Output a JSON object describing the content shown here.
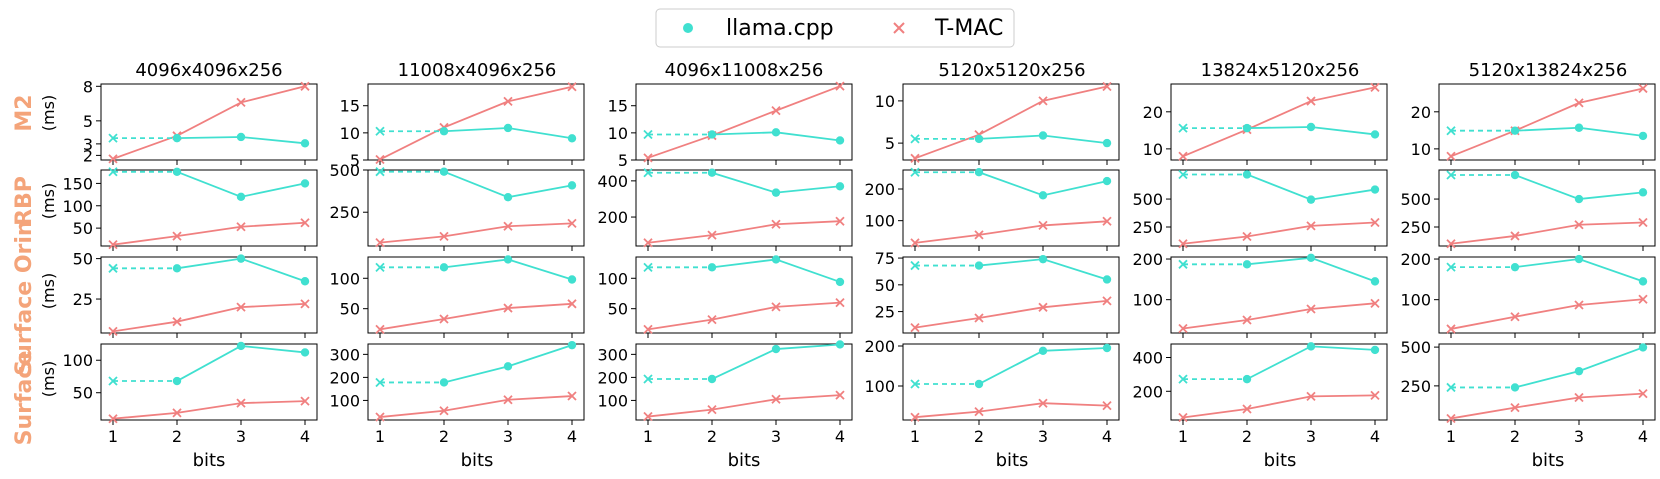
{
  "legend": [
    {
      "label": "llama.cpp",
      "marker": "circle",
      "color": "#40e0d0"
    },
    {
      "label": "T-MAC",
      "marker": "x",
      "color": "#f08080"
    }
  ],
  "colors": {
    "llama": "#40e0d0",
    "tmac": "#f08080",
    "row_label": "#f4a47a"
  },
  "rows": [
    {
      "label": "M2",
      "unit": "(ms)"
    },
    {
      "label": "RBP",
      "unit": "(ms)"
    },
    {
      "label": "Surface Orin",
      "unit": "(ms)"
    },
    {
      "label": "Surface",
      "unit": "(ms)"
    }
  ],
  "columns": [
    "4096x4096x256",
    "11008x4096x256",
    "4096x11008x256",
    "5120x5120x256",
    "13824x5120x256",
    "5120x13824x256"
  ],
  "x_axis_label": "bits",
  "chart_data": {
    "type": "line",
    "layout": "grid 4 rows x 6 columns",
    "x": [
      1,
      2,
      3,
      4
    ],
    "xlabel": "bits",
    "ylabel": "(ms)",
    "series_names": [
      "llama.cpp",
      "T-MAC"
    ],
    "note_style": "llama.cpp segment from bit 1 to 2 is dashed (1-bit uses same kernel as 2-bit, shown with x marker)",
    "panels": [
      [
        {
          "title": "4096x4096x256",
          "ylim": [
            1.6,
            8.2
          ],
          "yticks": [
            2,
            3,
            5,
            8
          ],
          "ytick_labels": [
            "2",
            "3",
            "5",
            "8"
          ],
          "llama": [
            3.5,
            3.5,
            3.6,
            3.05
          ],
          "tmac": [
            1.7,
            3.7,
            6.6,
            8.0
          ]
        },
        {
          "title": "11008x4096x256",
          "ylim": [
            5,
            19
          ],
          "yticks": [
            5,
            10,
            15
          ],
          "ytick_labels": [
            "5",
            "10",
            "15"
          ],
          "llama": [
            10.3,
            10.3,
            10.9,
            9.0
          ],
          "tmac": [
            5.1,
            11.0,
            15.8,
            18.5
          ]
        },
        {
          "title": "4096x11008x256",
          "ylim": [
            5,
            19
          ],
          "yticks": [
            5,
            10,
            15
          ],
          "ytick_labels": [
            "5",
            "10",
            "15"
          ],
          "llama": [
            9.7,
            9.7,
            10.1,
            8.6
          ],
          "tmac": [
            5.4,
            9.5,
            14.1,
            18.6
          ]
        },
        {
          "title": "5120x5120x256",
          "ylim": [
            3,
            12
          ],
          "yticks": [
            5,
            10
          ],
          "ytick_labels": [
            "5",
            "10"
          ],
          "llama": [
            5.5,
            5.5,
            5.9,
            5.0
          ],
          "tmac": [
            3.2,
            6.0,
            10.0,
            11.7
          ]
        },
        {
          "title": "13824x5120x256",
          "ylim": [
            7,
            27.5
          ],
          "yticks": [
            10,
            20
          ],
          "ytick_labels": [
            "10",
            "20"
          ],
          "llama": [
            15.6,
            15.6,
            15.9,
            13.9
          ],
          "tmac": [
            8.0,
            15.2,
            22.9,
            26.6
          ]
        },
        {
          "title": "5120x13824x256",
          "ylim": [
            7,
            27.5
          ],
          "yticks": [
            10,
            20
          ],
          "ytick_labels": [
            "10",
            "20"
          ],
          "llama": [
            14.9,
            14.9,
            15.7,
            13.5
          ],
          "tmac": [
            8.0,
            14.9,
            22.4,
            26.3
          ]
        }
      ],
      [
        {
          "title": "",
          "ylim": [
            10,
            180
          ],
          "yticks": [
            50,
            100,
            150
          ],
          "ytick_labels": [
            "50",
            "100",
            "150"
          ],
          "llama": [
            176,
            176,
            120,
            150
          ],
          "tmac": [
            13,
            32,
            53,
            62
          ]
        },
        {
          "title": "",
          "ylim": [
            50,
            500
          ],
          "yticks": [
            250,
            500
          ],
          "ytick_labels": [
            "250",
            "500"
          ],
          "llama": [
            490,
            490,
            339,
            409
          ],
          "tmac": [
            70,
            107,
            167,
            184
          ]
        },
        {
          "title": "",
          "ylim": [
            40,
            460
          ],
          "yticks": [
            200,
            400
          ],
          "ytick_labels": [
            "200",
            "400"
          ],
          "llama": [
            445,
            445,
            335,
            370
          ],
          "tmac": [
            58,
            100,
            160,
            177
          ]
        },
        {
          "title": "",
          "ylim": [
            20,
            260
          ],
          "yticks": [
            100,
            200
          ],
          "ytick_labels": [
            "100",
            "200"
          ],
          "llama": [
            253,
            253,
            180,
            225
          ],
          "tmac": [
            30,
            55,
            85,
            98
          ]
        },
        {
          "title": "",
          "ylim": [
            80,
            760
          ],
          "yticks": [
            250,
            500
          ],
          "ytick_labels": [
            "250",
            "500"
          ],
          "llama": [
            720,
            720,
            495,
            585
          ],
          "tmac": [
            100,
            165,
            260,
            290
          ]
        },
        {
          "title": "",
          "ylim": [
            80,
            760
          ],
          "yticks": [
            250,
            500
          ],
          "ytick_labels": [
            "250",
            "500"
          ],
          "llama": [
            715,
            715,
            500,
            560
          ],
          "tmac": [
            100,
            170,
            270,
            290
          ]
        }
      ],
      [
        {
          "title": "",
          "ylim": [
            4,
            51
          ],
          "yticks": [
            25,
            50
          ],
          "ytick_labels": [
            "25",
            "50"
          ],
          "llama": [
            44,
            44,
            50,
            36
          ],
          "tmac": [
            5,
            11,
            20,
            22
          ]
        },
        {
          "title": "",
          "ylim": [
            10,
            135
          ],
          "yticks": [
            50,
            100
          ],
          "ytick_labels": [
            "50",
            "100"
          ],
          "llama": [
            118,
            118,
            131,
            98
          ],
          "tmac": [
            16,
            33,
            51,
            58
          ]
        },
        {
          "title": "",
          "ylim": [
            10,
            135
          ],
          "yticks": [
            50,
            100
          ],
          "ytick_labels": [
            "50",
            "100"
          ],
          "llama": [
            118,
            118,
            131,
            94
          ],
          "tmac": [
            16,
            32,
            53,
            60
          ]
        },
        {
          "title": "",
          "ylim": [
            5,
            76
          ],
          "yticks": [
            25,
            50,
            75
          ],
          "ytick_labels": [
            "25",
            "50",
            "75"
          ],
          "llama": [
            68,
            68,
            74,
            55
          ],
          "tmac": [
            10,
            19,
            29,
            35
          ]
        },
        {
          "title": "",
          "ylim": [
            18,
            205
          ],
          "yticks": [
            100,
            200
          ],
          "ytick_labels": [
            "100",
            "200"
          ],
          "llama": [
            187,
            187,
            203,
            145
          ],
          "tmac": [
            29,
            50,
            77,
            91
          ]
        },
        {
          "title": "",
          "ylim": [
            18,
            205
          ],
          "yticks": [
            100,
            200
          ],
          "ytick_labels": [
            "100",
            "200"
          ],
          "llama": [
            180,
            180,
            200,
            145
          ],
          "tmac": [
            28,
            58,
            87,
            101
          ]
        }
      ],
      [
        {
          "title": "",
          "ylim": [
            8,
            125
          ],
          "yticks": [
            50,
            100
          ],
          "ytick_labels": [
            "50",
            "100"
          ],
          "llama": [
            68,
            68,
            122,
            112
          ],
          "tmac": [
            10,
            19,
            34,
            37
          ]
        },
        {
          "title": "",
          "ylim": [
            15,
            345
          ],
          "yticks": [
            100,
            200,
            300
          ],
          "ytick_labels": [
            "100",
            "200",
            "300"
          ],
          "llama": [
            178,
            178,
            248,
            340
          ],
          "tmac": [
            28,
            55,
            103,
            119
          ]
        },
        {
          "title": "",
          "ylim": [
            15,
            345
          ],
          "yticks": [
            100,
            200,
            300
          ],
          "ytick_labels": [
            "100",
            "200",
            "300"
          ],
          "llama": [
            193,
            193,
            323,
            343
          ],
          "tmac": [
            30,
            60,
            105,
            123
          ]
        },
        {
          "title": "",
          "ylim": [
            15,
            205
          ],
          "yticks": [
            100,
            200
          ],
          "ytick_labels": [
            "100",
            "200"
          ],
          "llama": [
            105,
            105,
            188,
            195
          ],
          "tmac": [
            22,
            36,
            57,
            51
          ]
        },
        {
          "title": "",
          "ylim": [
            30,
            480
          ],
          "yticks": [
            200,
            400
          ],
          "ytick_labels": [
            "200",
            "400"
          ],
          "llama": [
            272,
            272,
            466,
            445
          ],
          "tmac": [
            45,
            95,
            170,
            176
          ]
        },
        {
          "title": "",
          "ylim": [
            30,
            520
          ],
          "yticks": [
            250,
            500
          ],
          "ytick_labels": [
            "250",
            "500"
          ],
          "llama": [
            240,
            240,
            345,
            498
          ],
          "tmac": [
            40,
            110,
            175,
            200
          ]
        }
      ]
    ]
  }
}
